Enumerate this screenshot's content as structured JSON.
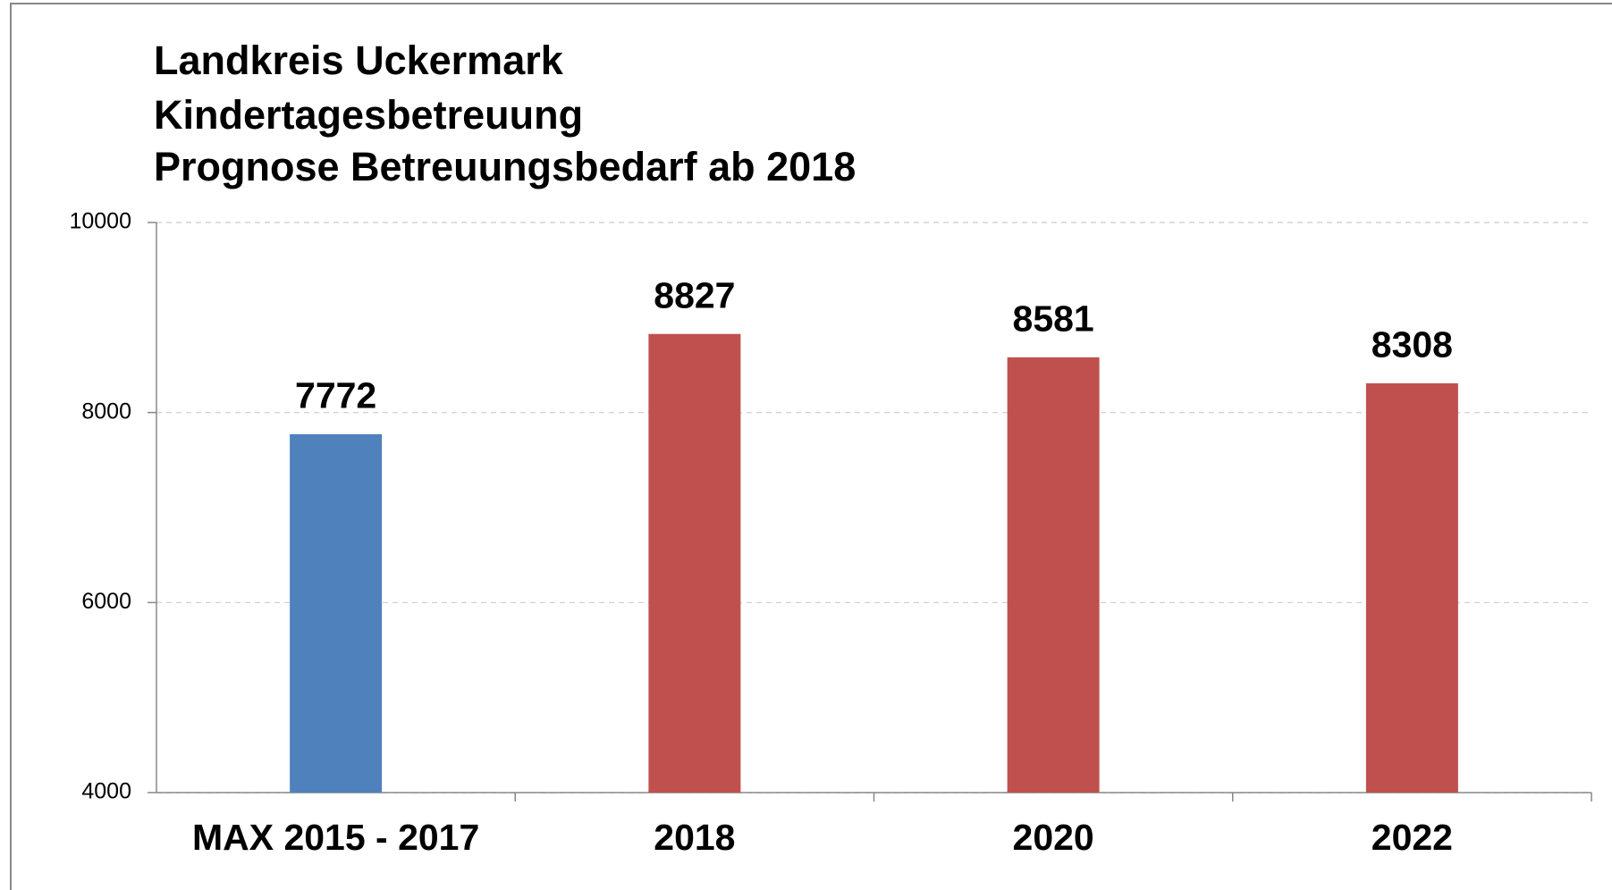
{
  "chart_data": {
    "type": "bar",
    "title": [
      "Landkreis Uckermark",
      "Kindertagesbetreuung",
      "Prognose Betreuungsbedarf ab 2018"
    ],
    "categories": [
      "MAX 2015 - 2017",
      "2018",
      "2020",
      "2022"
    ],
    "values": [
      7772,
      8827,
      8581,
      8308
    ],
    "colors": [
      "#4f81bd",
      "#c0504d",
      "#c0504d",
      "#c0504d"
    ],
    "ylim": [
      4000,
      10000
    ],
    "yticks": [
      4000,
      6000,
      8000,
      10000
    ],
    "grid": true
  }
}
